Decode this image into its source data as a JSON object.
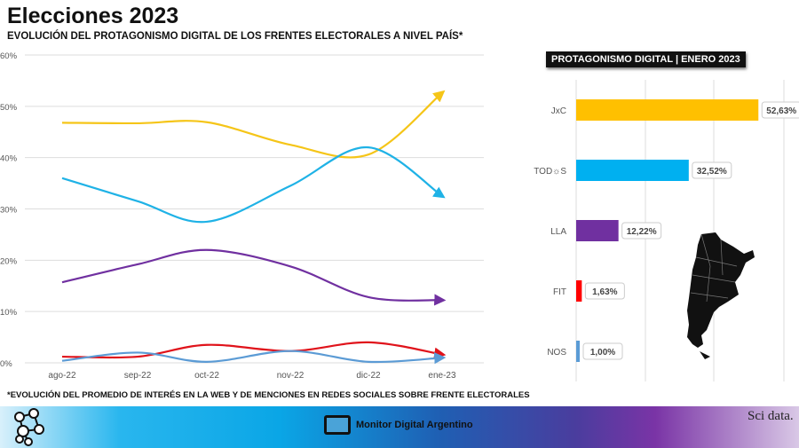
{
  "header": {
    "title": "Elecciones 2023",
    "subtitle": "EVOLUCIÓN DEL PROTAGONISMO DIGITAL DE LOS FRENTES ELECTORALES A NIVEL PAÍS*"
  },
  "footnote": "*EVOLUCIÓN DEL PROMEDIO DE INTERÉS EN LA WEB Y DE MENCIONES EN REDES SOCIALES SOBRE FRENTE ELECTORALES",
  "footer": {
    "center_label": "Monitor Digital Argentino",
    "logo_right": "Sci data."
  },
  "chart_data": [
    {
      "type": "line",
      "x": [
        "ago-22",
        "sep-22",
        "oct-22",
        "nov-22",
        "dic-22",
        "ene-23"
      ],
      "yticks": [
        "0%",
        "10%",
        "20%",
        "30%",
        "40%",
        "50%",
        "60%"
      ],
      "ylim": [
        0,
        60
      ],
      "grid": true,
      "series": [
        {
          "color": "#f5c518",
          "values": [
            46.8,
            46.7,
            46.9,
            42.5,
            40.6,
            52.63
          ]
        },
        {
          "color": "#1fb2e6",
          "values": [
            36.0,
            31.5,
            27.5,
            34.5,
            42.0,
            32.52
          ]
        },
        {
          "color": "#7030a0",
          "values": [
            15.7,
            19.2,
            22.0,
            18.8,
            12.8,
            12.22
          ]
        },
        {
          "color": "#e0131b",
          "values": [
            1.2,
            1.2,
            3.5,
            2.3,
            4.0,
            1.63
          ]
        },
        {
          "color": "#5b9bd5",
          "values": [
            0.4,
            2.0,
            0.2,
            2.3,
            0.2,
            1.0
          ]
        }
      ]
    },
    {
      "type": "bar",
      "title": "PROTAGONISMO DIGITAL | ENERO 2023",
      "orientation": "horizontal",
      "categories": [
        "JxC",
        "TOD☼S",
        "LLA",
        "FIT",
        "NOS"
      ],
      "values": [
        52.63,
        32.52,
        12.22,
        1.63,
        1.0
      ],
      "labels": [
        "52,63%",
        "32,52%",
        "12,22%",
        "1,63%",
        "1,00%"
      ],
      "colors": [
        "#ffc000",
        "#00b0f0",
        "#7030a0",
        "#ff0000",
        "#5b9bd5"
      ],
      "xlim": [
        0,
        60
      ]
    }
  ]
}
